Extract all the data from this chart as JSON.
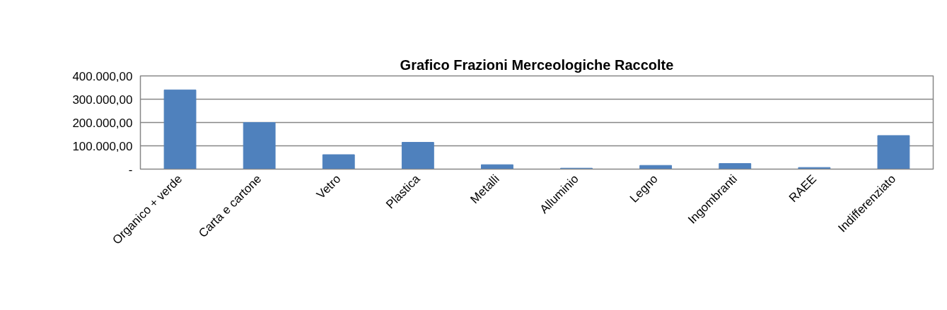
{
  "chart_data": {
    "type": "bar",
    "title": "Grafico Frazioni Merceologiche Raccolte",
    "categories": [
      "Organico + verde",
      "Carta e cartone",
      "Vetro",
      "Plastica",
      "Metalli",
      "Alluminio",
      "Legno",
      "Ingombranti",
      "RAEE",
      "Indifferenziato"
    ],
    "values": [
      340000,
      200000,
      62000,
      115000,
      19000,
      4000,
      16000,
      24000,
      7000,
      144000
    ],
    "color": "#4f81bd",
    "ylim": [
      0,
      400000
    ],
    "yticks": [
      {
        "value": 0,
        "label": "-"
      },
      {
        "value": 100000,
        "label": "100.000,00"
      },
      {
        "value": 200000,
        "label": "200.000,00"
      },
      {
        "value": 300000,
        "label": "300.000,00"
      },
      {
        "value": 400000,
        "label": "400.000,00"
      }
    ],
    "grid": "y"
  }
}
